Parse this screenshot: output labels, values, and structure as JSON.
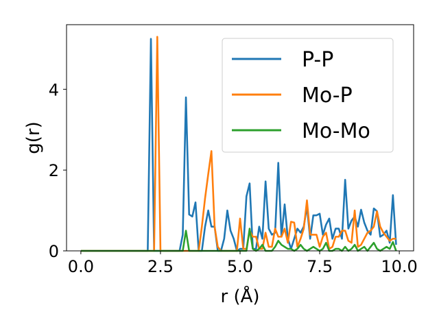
{
  "chart_data": {
    "type": "line",
    "xlabel": "r (Å)",
    "ylabel": "g(r)",
    "xlim": [
      -0.45,
      10.45
    ],
    "ylim": [
      0,
      5.6
    ],
    "xticks": [
      0.0,
      2.5,
      5.0,
      7.5,
      10.0
    ],
    "xtick_labels": [
      "0.0",
      "2.5",
      "5.0",
      "7.5",
      "10.0"
    ],
    "yticks": [
      0,
      2,
      4
    ],
    "ytick_labels": [
      "0",
      "2",
      "4"
    ],
    "legend_position": "top-right",
    "grid": false,
    "series": [
      {
        "name": "P-P",
        "color": "#1f77b4",
        "points": [
          [
            0.0,
            0
          ],
          [
            0.5,
            0
          ],
          [
            1.0,
            0
          ],
          [
            1.5,
            0
          ],
          [
            2.0,
            0
          ],
          [
            2.1,
            0
          ],
          [
            2.2,
            5.25
          ],
          [
            2.3,
            0
          ],
          [
            2.5,
            0
          ],
          [
            3.0,
            0
          ],
          [
            3.1,
            0
          ],
          [
            3.2,
            0.4
          ],
          [
            3.3,
            3.8
          ],
          [
            3.4,
            0.9
          ],
          [
            3.5,
            0.85
          ],
          [
            3.6,
            1.2
          ],
          [
            3.7,
            0
          ],
          [
            3.8,
            0
          ],
          [
            3.9,
            0.6
          ],
          [
            4.0,
            1.0
          ],
          [
            4.1,
            0.6
          ],
          [
            4.2,
            0.6
          ],
          [
            4.3,
            0
          ],
          [
            4.4,
            0
          ],
          [
            4.5,
            0.3
          ],
          [
            4.6,
            1.0
          ],
          [
            4.7,
            0.5
          ],
          [
            4.8,
            0.3
          ],
          [
            4.9,
            0
          ],
          [
            5.0,
            0.05
          ],
          [
            5.1,
            0.05
          ],
          [
            5.2,
            1.35
          ],
          [
            5.3,
            1.67
          ],
          [
            5.4,
            0.05
          ],
          [
            5.5,
            0.05
          ],
          [
            5.6,
            0.6
          ],
          [
            5.7,
            0.3
          ],
          [
            5.8,
            1.72
          ],
          [
            5.9,
            0.55
          ],
          [
            6.0,
            0.4
          ],
          [
            6.1,
            0.45
          ],
          [
            6.2,
            2.18
          ],
          [
            6.3,
            0.35
          ],
          [
            6.4,
            1.15
          ],
          [
            6.5,
            0.3
          ],
          [
            6.6,
            0.05
          ],
          [
            6.7,
            0.3
          ],
          [
            6.8,
            0.55
          ],
          [
            6.9,
            0.45
          ],
          [
            7.0,
            0.6
          ],
          [
            7.1,
            1.1
          ],
          [
            7.2,
            0.3
          ],
          [
            7.3,
            0.88
          ],
          [
            7.4,
            0.88
          ],
          [
            7.5,
            0.92
          ],
          [
            7.6,
            0.4
          ],
          [
            7.7,
            0.65
          ],
          [
            7.8,
            0.8
          ],
          [
            7.9,
            0.3
          ],
          [
            8.0,
            0.55
          ],
          [
            8.1,
            0.55
          ],
          [
            8.2,
            0.3
          ],
          [
            8.3,
            1.76
          ],
          [
            8.4,
            0.55
          ],
          [
            8.5,
            0.75
          ],
          [
            8.6,
            0.85
          ],
          [
            8.7,
            0.6
          ],
          [
            8.8,
            1.02
          ],
          [
            8.9,
            0.7
          ],
          [
            9.0,
            0.5
          ],
          [
            9.1,
            0.4
          ],
          [
            9.2,
            1.05
          ],
          [
            9.3,
            0.98
          ],
          [
            9.4,
            0.35
          ],
          [
            9.5,
            0.4
          ],
          [
            9.6,
            0.5
          ],
          [
            9.7,
            0.2
          ],
          [
            9.8,
            1.38
          ],
          [
            9.9,
            0.15
          ]
        ]
      },
      {
        "name": "Mo-P",
        "color": "#ff7f0e",
        "points": [
          [
            0.0,
            0
          ],
          [
            0.5,
            0
          ],
          [
            1.0,
            0
          ],
          [
            1.5,
            0
          ],
          [
            2.0,
            0
          ],
          [
            2.3,
            0
          ],
          [
            2.4,
            5.3
          ],
          [
            2.5,
            0
          ],
          [
            3.0,
            0
          ],
          [
            3.5,
            0
          ],
          [
            3.7,
            0
          ],
          [
            3.8,
            0.6
          ],
          [
            3.9,
            1.3
          ],
          [
            4.0,
            1.9
          ],
          [
            4.1,
            2.47
          ],
          [
            4.2,
            0.6
          ],
          [
            4.3,
            0.1
          ],
          [
            4.4,
            0
          ],
          [
            4.5,
            0
          ],
          [
            4.6,
            0
          ],
          [
            4.7,
            0
          ],
          [
            4.8,
            0
          ],
          [
            4.9,
            0
          ],
          [
            5.0,
            0.8
          ],
          [
            5.1,
            0.05
          ],
          [
            5.2,
            0.05
          ],
          [
            5.3,
            0.5
          ],
          [
            5.4,
            0.35
          ],
          [
            5.5,
            0.35
          ],
          [
            5.6,
            0.05
          ],
          [
            5.7,
            0.05
          ],
          [
            5.8,
            0.45
          ],
          [
            5.9,
            0.1
          ],
          [
            6.0,
            0.1
          ],
          [
            6.1,
            0.55
          ],
          [
            6.2,
            0.35
          ],
          [
            6.3,
            0.35
          ],
          [
            6.4,
            0.55
          ],
          [
            6.5,
            0.2
          ],
          [
            6.6,
            0.72
          ],
          [
            6.7,
            0.7
          ],
          [
            6.8,
            0.1
          ],
          [
            6.9,
            0.3
          ],
          [
            7.0,
            0.55
          ],
          [
            7.1,
            1.25
          ],
          [
            7.2,
            0.4
          ],
          [
            7.3,
            0.4
          ],
          [
            7.4,
            0.4
          ],
          [
            7.5,
            0.1
          ],
          [
            7.6,
            0.35
          ],
          [
            7.7,
            0.45
          ],
          [
            7.8,
            0.05
          ],
          [
            7.9,
            0.1
          ],
          [
            8.0,
            0.35
          ],
          [
            8.1,
            0.35
          ],
          [
            8.2,
            0.5
          ],
          [
            8.3,
            0.5
          ],
          [
            8.4,
            0.25
          ],
          [
            8.5,
            0.2
          ],
          [
            8.6,
            1.0
          ],
          [
            8.7,
            0.1
          ],
          [
            8.8,
            0.15
          ],
          [
            8.9,
            0.3
          ],
          [
            9.0,
            0.45
          ],
          [
            9.1,
            0.5
          ],
          [
            9.2,
            0.6
          ],
          [
            9.3,
            0.98
          ],
          [
            9.4,
            0.6
          ],
          [
            9.5,
            0.45
          ],
          [
            9.6,
            0.35
          ],
          [
            9.7,
            0.25
          ],
          [
            9.8,
            0.3
          ],
          [
            9.9,
            0.3
          ]
        ]
      },
      {
        "name": "Mo-Mo",
        "color": "#2ca02c",
        "points": [
          [
            0.0,
            0
          ],
          [
            0.5,
            0
          ],
          [
            1.0,
            0
          ],
          [
            1.5,
            0
          ],
          [
            2.0,
            0
          ],
          [
            2.5,
            0
          ],
          [
            3.0,
            0
          ],
          [
            3.2,
            0
          ],
          [
            3.3,
            0.5
          ],
          [
            3.4,
            0
          ],
          [
            3.5,
            0
          ],
          [
            4.0,
            0
          ],
          [
            4.5,
            0
          ],
          [
            5.0,
            0
          ],
          [
            5.2,
            0
          ],
          [
            5.3,
            0.55
          ],
          [
            5.4,
            0.05
          ],
          [
            5.5,
            0
          ],
          [
            5.6,
            0.05
          ],
          [
            5.7,
            0.15
          ],
          [
            5.8,
            0
          ],
          [
            5.9,
            0
          ],
          [
            6.0,
            0
          ],
          [
            6.1,
            0.1
          ],
          [
            6.2,
            0.25
          ],
          [
            6.3,
            0.15
          ],
          [
            6.4,
            0.1
          ],
          [
            6.5,
            0.05
          ],
          [
            6.6,
            0.05
          ],
          [
            6.7,
            0
          ],
          [
            6.8,
            0.05
          ],
          [
            6.9,
            0.15
          ],
          [
            7.0,
            0.05
          ],
          [
            7.1,
            0
          ],
          [
            7.2,
            0.05
          ],
          [
            7.3,
            0.1
          ],
          [
            7.4,
            0.05
          ],
          [
            7.5,
            0
          ],
          [
            7.6,
            0.05
          ],
          [
            7.7,
            0.2
          ],
          [
            7.8,
            0
          ],
          [
            7.9,
            0
          ],
          [
            8.0,
            0.05
          ],
          [
            8.1,
            0.05
          ],
          [
            8.2,
            0
          ],
          [
            8.3,
            0.1
          ],
          [
            8.4,
            0
          ],
          [
            8.5,
            0.05
          ],
          [
            8.6,
            0.15
          ],
          [
            8.7,
            0
          ],
          [
            8.8,
            0.05
          ],
          [
            8.9,
            0.1
          ],
          [
            9.0,
            0
          ],
          [
            9.1,
            0.1
          ],
          [
            9.2,
            0.2
          ],
          [
            9.3,
            0.05
          ],
          [
            9.4,
            0
          ],
          [
            9.5,
            0.05
          ],
          [
            9.6,
            0.1
          ],
          [
            9.7,
            0.05
          ],
          [
            9.8,
            0.22
          ],
          [
            9.9,
            0
          ]
        ]
      }
    ]
  }
}
